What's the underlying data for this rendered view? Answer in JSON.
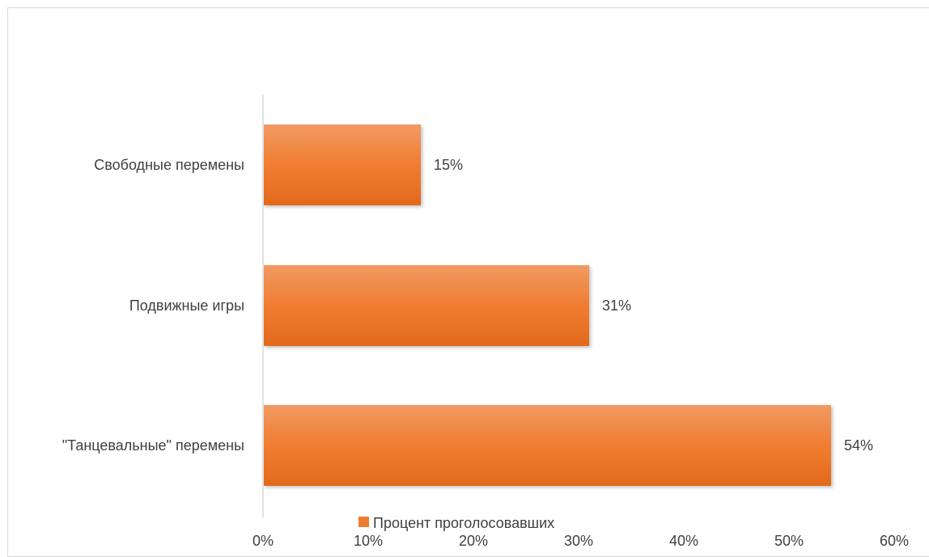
{
  "chart_data": {
    "type": "bar",
    "orientation": "horizontal",
    "categories": [
      "Свободные перемены",
      "Подвижные игры",
      "\"Танцевальные\" перемены"
    ],
    "series": [
      {
        "name": "Процент проголосовавших",
        "values": [
          15,
          31,
          54
        ],
        "data_labels": [
          "15%",
          "31%",
          "54%"
        ],
        "color": "#ed7d31"
      }
    ],
    "xlim": [
      0,
      60
    ],
    "x_ticks": [
      0,
      10,
      20,
      30,
      40,
      50,
      60
    ],
    "x_tick_labels": [
      "0%",
      "10%",
      "20%",
      "30%",
      "40%",
      "50%",
      "60%"
    ],
    "title": "",
    "xlabel": "",
    "ylabel": "",
    "grid": false,
    "legend_position": "bottom"
  },
  "colors": {
    "bar_top": "#f19a63",
    "bar_mid": "#f07d31",
    "bar_bottom": "#e2691c",
    "axis": "#d9d9d9",
    "text": "#404040"
  }
}
